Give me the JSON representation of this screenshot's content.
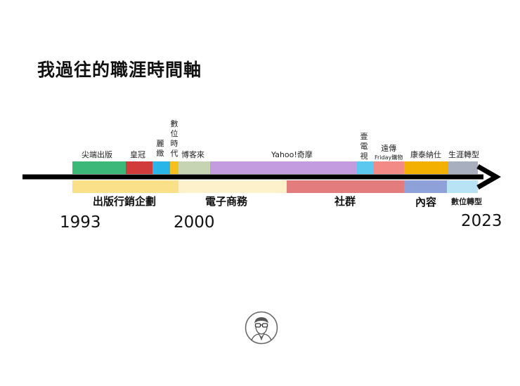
{
  "title": "我過往的職涯時間軸",
  "top_bar": [
    {
      "label": "尖端出版",
      "color": "#3cb878"
    },
    {
      "label": "皇冠",
      "color": "#d23b3b"
    },
    {
      "label": "麗緻",
      "color": "#2ab5e8"
    },
    {
      "label": "數位時代",
      "color": "#f3c01e"
    },
    {
      "label": "博客來",
      "color": "#c6d4b4"
    },
    {
      "label": "Yahoo!奇摩",
      "color": "#c39ce0"
    },
    {
      "label": "壹電視",
      "color": "#5bc8f0"
    },
    {
      "label": "遠傳",
      "sublabel": "Friday購物",
      "color": "#f28b85"
    },
    {
      "label": "康泰納仕",
      "color": "#f4b000"
    },
    {
      "label": "生涯轉型",
      "color": "#a8afbf"
    }
  ],
  "bottom_bar": [
    {
      "label": "出版行銷企劃",
      "color": "#fbe08a"
    },
    {
      "label": "電子商務",
      "color": "#fdf1cc"
    },
    {
      "label": "社群",
      "color": "#e37c7c"
    },
    {
      "label": "內容",
      "color": "#8ea2d9"
    },
    {
      "label": "數位轉型",
      "color": "#b7e3f5"
    }
  ],
  "years": {
    "start": "1993",
    "middle": "2000",
    "end": "2023"
  },
  "colors": {
    "axis": "#000000"
  }
}
